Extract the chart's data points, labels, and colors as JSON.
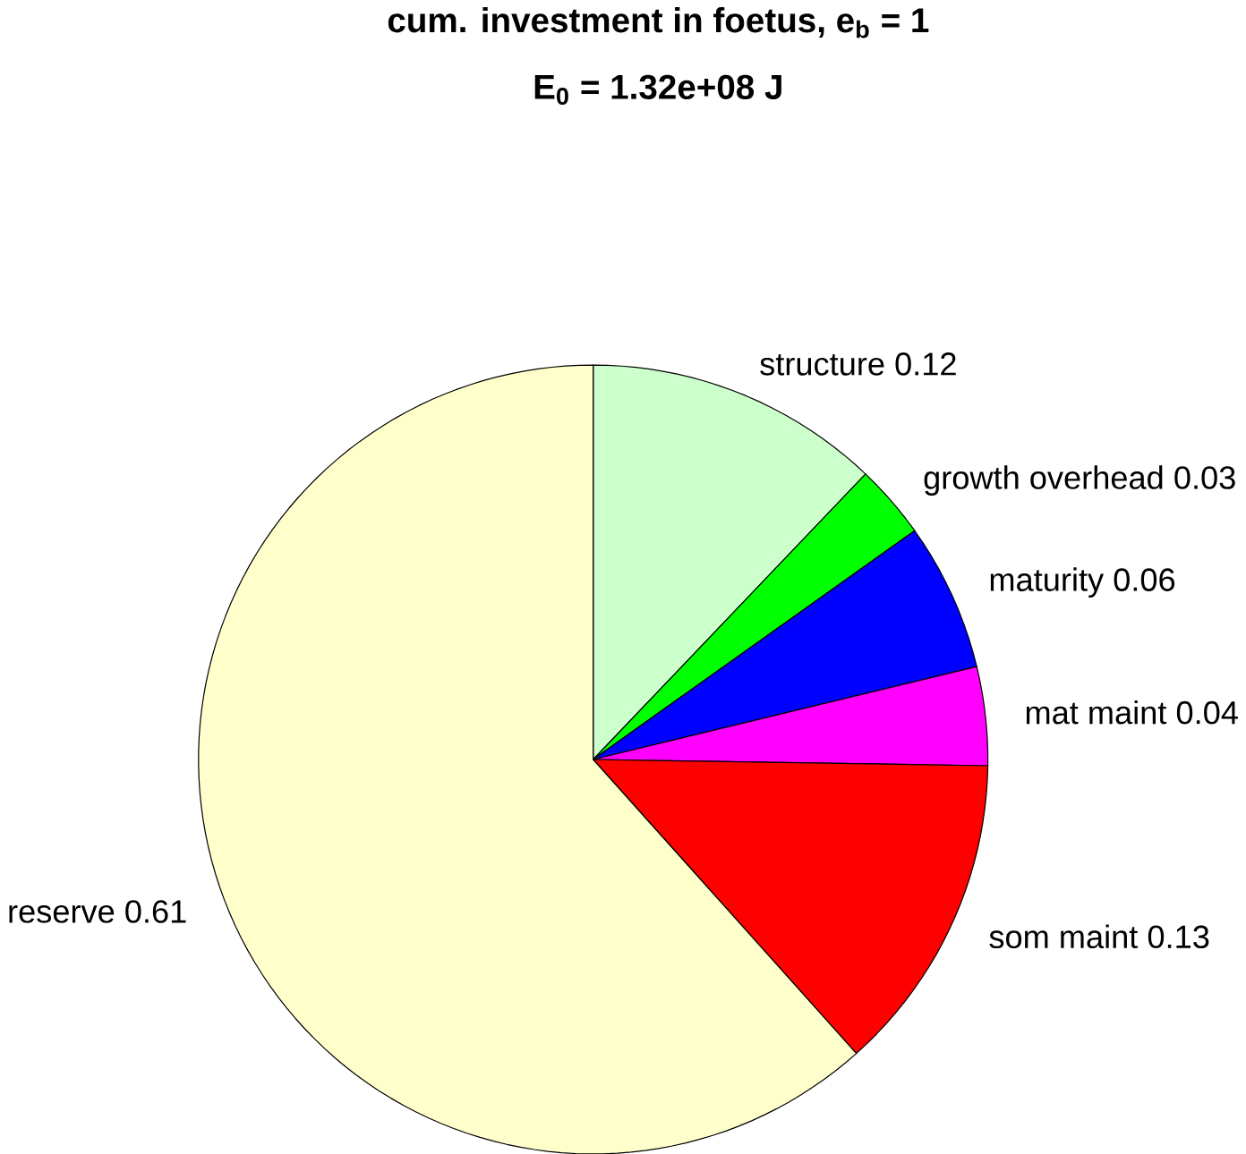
{
  "chart_data": {
    "type": "pie",
    "title": "cum. investment in foetus, e$_{b}$ = 1",
    "subtitle": "E$_{0}$ = 1.32e+08 J",
    "categories": [
      "structure",
      "growth overhead",
      "maturity",
      "mat maint",
      "som maint",
      "reserve"
    ],
    "values": [
      0.12,
      0.03,
      0.06,
      0.04,
      0.13,
      0.61
    ],
    "colors": [
      "#ccffcc",
      "#00ff00",
      "#0000ff",
      "#ff00ff",
      "#ff0000",
      "#ffffcc"
    ],
    "data_labels": true
  }
}
